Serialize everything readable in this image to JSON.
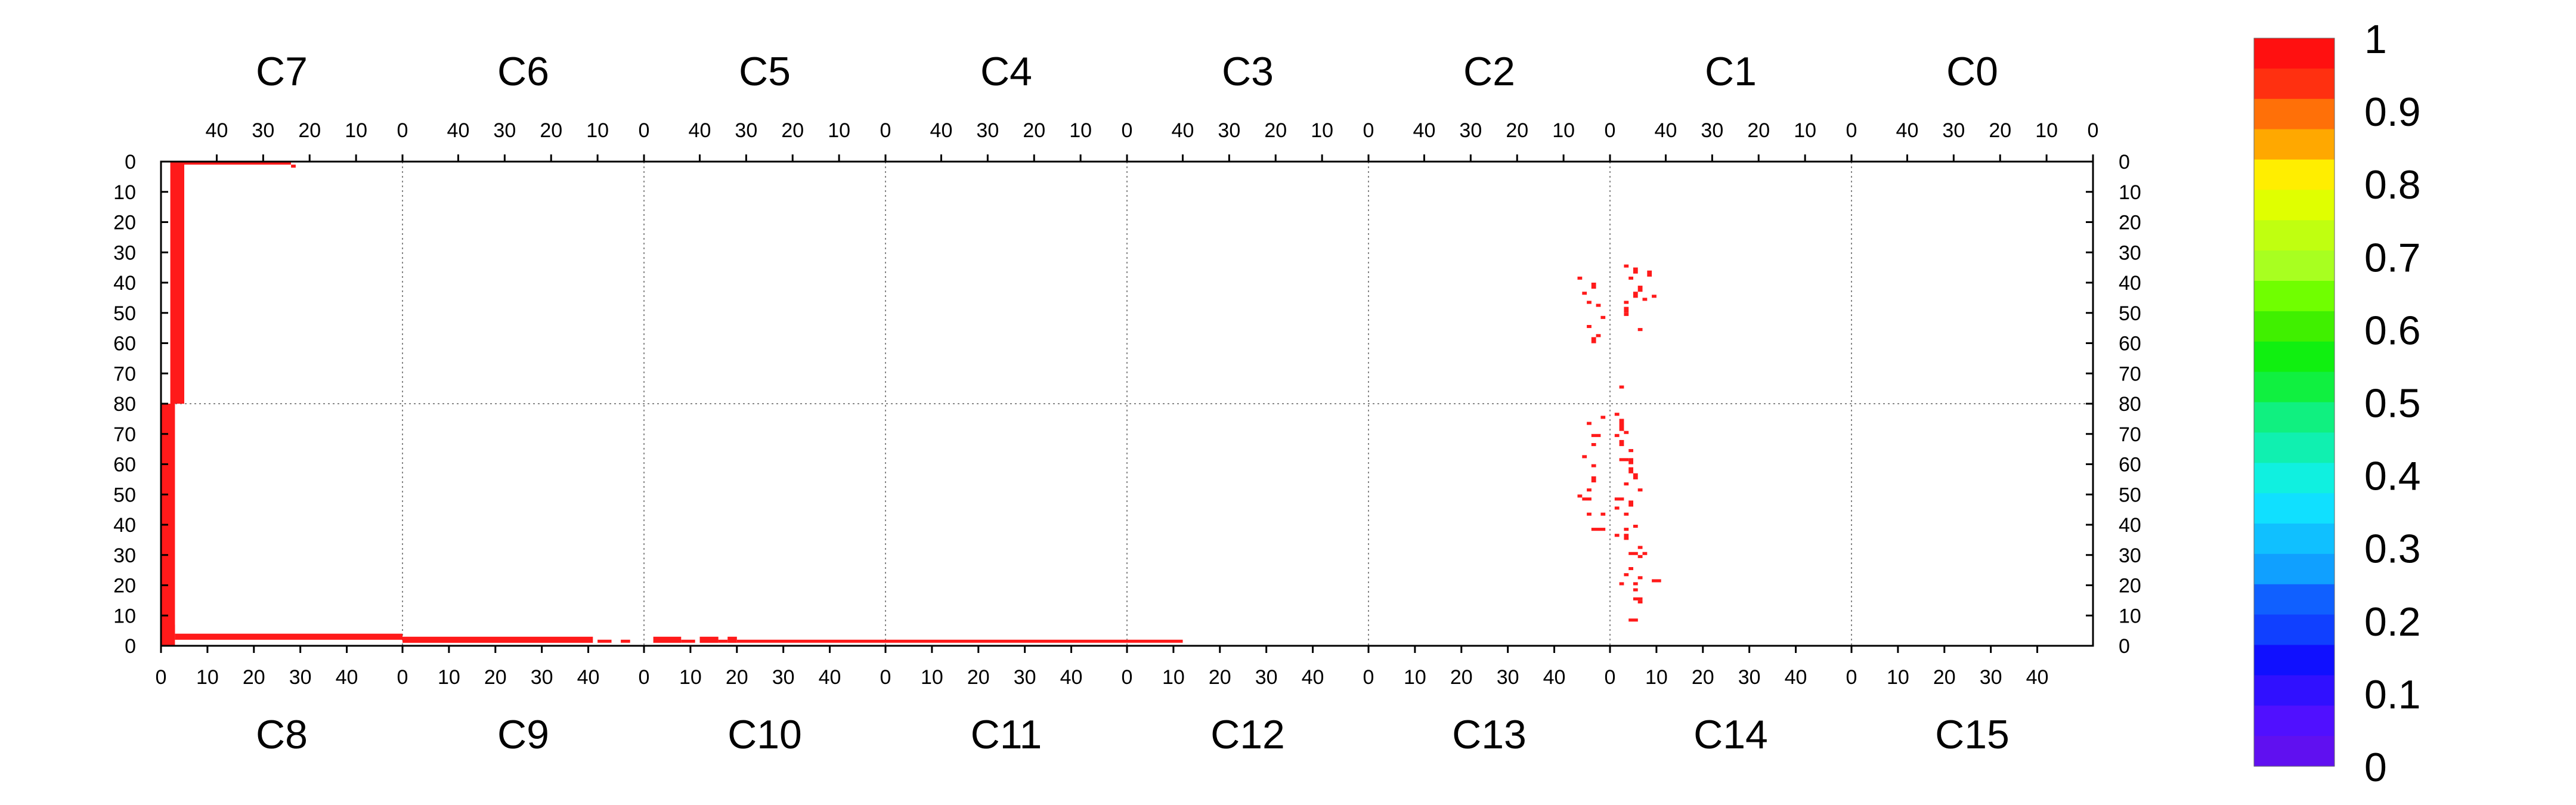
{
  "chart_data": {
    "type": "heatmap",
    "title": "",
    "colors": {
      "hit": "#ff1a1a",
      "frame": "#000000",
      "grid": "#888888",
      "background": "#ffffff"
    },
    "grid": true,
    "top_chips": [
      "C7",
      "C6",
      "C5",
      "C4",
      "C3",
      "C2",
      "C1",
      "C0"
    ],
    "bottom_chips": [
      "C8",
      "C9",
      "C10",
      "C11",
      "C12",
      "C13",
      "C14",
      "C15"
    ],
    "top_tick_labels": [
      "40",
      "30",
      "20",
      "10",
      "0"
    ],
    "bottom_tick_labels": [
      "0",
      "10",
      "20",
      "30",
      "40"
    ],
    "y_tick_labels": [
      "0",
      "10",
      "20",
      "30",
      "40",
      "50",
      "60",
      "70",
      "80",
      "70",
      "60",
      "50",
      "40",
      "30",
      "20",
      "10",
      "0"
    ],
    "columns_per_chip": 52,
    "rows_per_half": 80,
    "zlim": [
      0,
      1
    ],
    "colorbar": {
      "labels": [
        "1",
        "0.9",
        "0.8",
        "0.7",
        "0.6",
        "0.5",
        "0.4",
        "0.3",
        "0.2",
        "0.1",
        "0"
      ],
      "colors": [
        "#ff1010",
        "#ff3010",
        "#ff7008",
        "#ffa800",
        "#ffee00",
        "#e0ff00",
        "#c0ff10",
        "#a8ff20",
        "#70ff00",
        "#40f000",
        "#10f010",
        "#10f040",
        "#10f080",
        "#10f0b0",
        "#10f0e0",
        "#10e0ff",
        "#10c0ff",
        "#10a0ff",
        "#1060ff",
        "#1040ff",
        "#1010ff",
        "#3010ff",
        "#5010ff",
        "#6010f0"
      ]
    },
    "hits": [
      {
        "chip": "C7",
        "row": 0,
        "col": 47,
        "w": 3,
        "h": 80,
        "value": 1
      },
      {
        "chip": "C7",
        "row": 0,
        "col": 24,
        "w": 23,
        "h": 1,
        "value": 1
      },
      {
        "chip": "C7",
        "row": 1,
        "col": 23,
        "w": 1,
        "h": 1,
        "value": 1
      },
      {
        "chip": "C8",
        "row": 0,
        "col": 0,
        "w": 3,
        "h": 80,
        "value": 1
      },
      {
        "chip": "C8",
        "row": 2,
        "col": 3,
        "w": 49,
        "h": 2,
        "value": 1
      },
      {
        "chip": "C8",
        "row": 4,
        "col": 1,
        "w": 2,
        "h": 3,
        "value": 1
      },
      {
        "chip": "C9",
        "row": 1,
        "col": 0,
        "w": 41,
        "h": 2,
        "value": 1
      },
      {
        "chip": "C9",
        "row": 1,
        "col": 42,
        "w": 3,
        "h": 1,
        "value": 1
      },
      {
        "chip": "C9",
        "row": 1,
        "col": 47,
        "w": 2,
        "h": 1,
        "value": 1
      },
      {
        "chip": "C10",
        "row": 1,
        "col": 2,
        "w": 6,
        "h": 2,
        "value": 1
      },
      {
        "chip": "C10",
        "row": 1,
        "col": 8,
        "w": 3,
        "h": 1,
        "value": 1
      },
      {
        "chip": "C10",
        "row": 1,
        "col": 12,
        "w": 4,
        "h": 2,
        "value": 1
      },
      {
        "chip": "C10",
        "row": 1,
        "col": 16,
        "w": 2,
        "h": 1,
        "value": 1
      },
      {
        "chip": "C10",
        "row": 1,
        "col": 18,
        "w": 2,
        "h": 2,
        "value": 1
      },
      {
        "chip": "C10",
        "row": 1,
        "col": 20,
        "w": 32,
        "h": 1,
        "value": 1
      },
      {
        "chip": "C11",
        "row": 1,
        "col": 0,
        "w": 52,
        "h": 1,
        "value": 1
      },
      {
        "chip": "C12",
        "row": 1,
        "col": 0,
        "w": 12,
        "h": 1,
        "value": 1
      },
      {
        "chip": "C1",
        "row": 74,
        "col": 49,
        "w": 1,
        "h": 1,
        "value": 1
      },
      {
        "chip": "C1",
        "row": 55,
        "col": 45,
        "w": 1,
        "h": 1,
        "value": 1
      },
      {
        "chip": "C1",
        "row": 50,
        "col": 48,
        "w": 1,
        "h": 1,
        "value": 1
      },
      {
        "chip": "C1",
        "row": 48,
        "col": 48,
        "w": 1,
        "h": 2,
        "value": 1
      },
      {
        "chip": "C1",
        "row": 46,
        "col": 48,
        "w": 1,
        "h": 1,
        "value": 1
      },
      {
        "chip": "C1",
        "row": 43,
        "col": 46,
        "w": 1,
        "h": 2,
        "value": 1
      },
      {
        "chip": "C1",
        "row": 45,
        "col": 44,
        "w": 1,
        "h": 1,
        "value": 1
      },
      {
        "chip": "C1",
        "row": 44,
        "col": 42,
        "w": 1,
        "h": 1,
        "value": 1
      },
      {
        "chip": "C1",
        "row": 41,
        "col": 45,
        "w": 1,
        "h": 2,
        "value": 1
      },
      {
        "chip": "C1",
        "row": 38,
        "col": 47,
        "w": 1,
        "h": 1,
        "value": 1
      },
      {
        "chip": "C1",
        "row": 34,
        "col": 48,
        "w": 1,
        "h": 1,
        "value": 1
      },
      {
        "chip": "C1",
        "row": 35,
        "col": 46,
        "w": 1,
        "h": 2,
        "value": 1
      },
      {
        "chip": "C1",
        "row": 36,
        "col": 43,
        "w": 1,
        "h": 2,
        "value": 1
      },
      {
        "chip": "C2",
        "row": 58,
        "col": 3,
        "w": 1,
        "h": 2,
        "value": 1
      },
      {
        "chip": "C2",
        "row": 57,
        "col": 2,
        "w": 1,
        "h": 1,
        "value": 1
      },
      {
        "chip": "C2",
        "row": 54,
        "col": 4,
        "w": 1,
        "h": 1,
        "value": 1
      },
      {
        "chip": "C2",
        "row": 51,
        "col": 1,
        "w": 1,
        "h": 1,
        "value": 1
      },
      {
        "chip": "C2",
        "row": 47,
        "col": 2,
        "w": 1,
        "h": 1,
        "value": 1
      },
      {
        "chip": "C2",
        "row": 46,
        "col": 4,
        "w": 1,
        "h": 1,
        "value": 1
      },
      {
        "chip": "C2",
        "row": 43,
        "col": 5,
        "w": 1,
        "h": 1,
        "value": 1
      },
      {
        "chip": "C2",
        "row": 40,
        "col": 3,
        "w": 1,
        "h": 2,
        "value": 1
      },
      {
        "chip": "C2",
        "row": 38,
        "col": 6,
        "w": 1,
        "h": 1,
        "value": 1
      },
      {
        "chip": "C13",
        "row": 75,
        "col": 50,
        "w": 1,
        "h": 1,
        "value": 1
      },
      {
        "chip": "C13",
        "row": 73,
        "col": 47,
        "w": 1,
        "h": 1,
        "value": 1
      },
      {
        "chip": "C13",
        "row": 69,
        "col": 48,
        "w": 2,
        "h": 1,
        "value": 1
      },
      {
        "chip": "C13",
        "row": 66,
        "col": 48,
        "w": 1,
        "h": 1,
        "value": 1
      },
      {
        "chip": "C13",
        "row": 62,
        "col": 46,
        "w": 1,
        "h": 1,
        "value": 1
      },
      {
        "chip": "C13",
        "row": 59,
        "col": 48,
        "w": 1,
        "h": 1,
        "value": 1
      },
      {
        "chip": "C13",
        "row": 54,
        "col": 48,
        "w": 1,
        "h": 2,
        "value": 1
      },
      {
        "chip": "C13",
        "row": 51,
        "col": 47,
        "w": 1,
        "h": 1,
        "value": 1
      },
      {
        "chip": "C13",
        "row": 49,
        "col": 45,
        "w": 1,
        "h": 1,
        "value": 1
      },
      {
        "chip": "C13",
        "row": 48,
        "col": 46,
        "w": 2,
        "h": 1,
        "value": 1
      },
      {
        "chip": "C13",
        "row": 43,
        "col": 50,
        "w": 1,
        "h": 1,
        "value": 1
      },
      {
        "chip": "C13",
        "row": 43,
        "col": 47,
        "w": 1,
        "h": 1,
        "value": 1
      },
      {
        "chip": "C13",
        "row": 38,
        "col": 48,
        "w": 3,
        "h": 1,
        "value": 1
      },
      {
        "chip": "C14",
        "row": 69,
        "col": 1,
        "w": 1,
        "h": 1,
        "value": 1
      },
      {
        "chip": "C14",
        "row": 76,
        "col": 1,
        "w": 1,
        "h": 1,
        "value": 1
      },
      {
        "chip": "C14",
        "row": 73,
        "col": 2,
        "w": 1,
        "h": 2,
        "value": 1
      },
      {
        "chip": "C14",
        "row": 71,
        "col": 2,
        "w": 1,
        "h": 2,
        "value": 1
      },
      {
        "chip": "C14",
        "row": 70,
        "col": 3,
        "w": 1,
        "h": 1,
        "value": 1
      },
      {
        "chip": "C14",
        "row": 66,
        "col": 2,
        "w": 1,
        "h": 2,
        "value": 1
      },
      {
        "chip": "C14",
        "row": 64,
        "col": 4,
        "w": 1,
        "h": 1,
        "value": 1
      },
      {
        "chip": "C14",
        "row": 61,
        "col": 2,
        "w": 2,
        "h": 1,
        "value": 1
      },
      {
        "chip": "C14",
        "row": 60,
        "col": 4,
        "w": 1,
        "h": 2,
        "value": 1
      },
      {
        "chip": "C14",
        "row": 57,
        "col": 4,
        "w": 1,
        "h": 2,
        "value": 1
      },
      {
        "chip": "C14",
        "row": 55,
        "col": 5,
        "w": 1,
        "h": 2,
        "value": 1
      },
      {
        "chip": "C14",
        "row": 53,
        "col": 3,
        "w": 1,
        "h": 1,
        "value": 1
      },
      {
        "chip": "C14",
        "row": 51,
        "col": 6,
        "w": 1,
        "h": 1,
        "value": 1
      },
      {
        "chip": "C14",
        "row": 48,
        "col": 1,
        "w": 2,
        "h": 1,
        "value": 1
      },
      {
        "chip": "C14",
        "row": 46,
        "col": 4,
        "w": 1,
        "h": 2,
        "value": 1
      },
      {
        "chip": "C14",
        "row": 45,
        "col": 1,
        "w": 1,
        "h": 1,
        "value": 1
      },
      {
        "chip": "C14",
        "row": 43,
        "col": 3,
        "w": 1,
        "h": 1,
        "value": 1
      },
      {
        "chip": "C14",
        "row": 39,
        "col": 5,
        "w": 1,
        "h": 1,
        "value": 1
      },
      {
        "chip": "C14",
        "row": 38,
        "col": 3,
        "w": 1,
        "h": 1,
        "value": 1
      },
      {
        "chip": "C14",
        "row": 36,
        "col": 1,
        "w": 1,
        "h": 1,
        "value": 1
      },
      {
        "chip": "C14",
        "row": 35,
        "col": 3,
        "w": 1,
        "h": 2,
        "value": 1
      },
      {
        "chip": "C14",
        "row": 32,
        "col": 6,
        "w": 1,
        "h": 1,
        "value": 1
      },
      {
        "chip": "C14",
        "row": 30,
        "col": 4,
        "w": 2,
        "h": 1,
        "value": 1
      },
      {
        "chip": "C14",
        "row": 30,
        "col": 7,
        "w": 1,
        "h": 1,
        "value": 1
      },
      {
        "chip": "C14",
        "row": 29,
        "col": 6,
        "w": 1,
        "h": 1,
        "value": 1
      },
      {
        "chip": "C14",
        "row": 25,
        "col": 4,
        "w": 1,
        "h": 1,
        "value": 1
      },
      {
        "chip": "C14",
        "row": 23,
        "col": 3,
        "w": 1,
        "h": 1,
        "value": 1
      },
      {
        "chip": "C14",
        "row": 22,
        "col": 6,
        "w": 1,
        "h": 1,
        "value": 1
      },
      {
        "chip": "C14",
        "row": 21,
        "col": 9,
        "w": 2,
        "h": 1,
        "value": 1
      },
      {
        "chip": "C14",
        "row": 20,
        "col": 2,
        "w": 1,
        "h": 1,
        "value": 1
      },
      {
        "chip": "C14",
        "row": 20,
        "col": 5,
        "w": 1,
        "h": 1,
        "value": 1
      },
      {
        "chip": "C14",
        "row": 18,
        "col": 5,
        "w": 1,
        "h": 1,
        "value": 1
      },
      {
        "chip": "C14",
        "row": 15,
        "col": 5,
        "w": 2,
        "h": 1,
        "value": 1
      },
      {
        "chip": "C14",
        "row": 14,
        "col": 6,
        "w": 1,
        "h": 1,
        "value": 1
      },
      {
        "chip": "C14",
        "row": 8,
        "col": 4,
        "w": 2,
        "h": 1,
        "value": 1
      }
    ]
  }
}
